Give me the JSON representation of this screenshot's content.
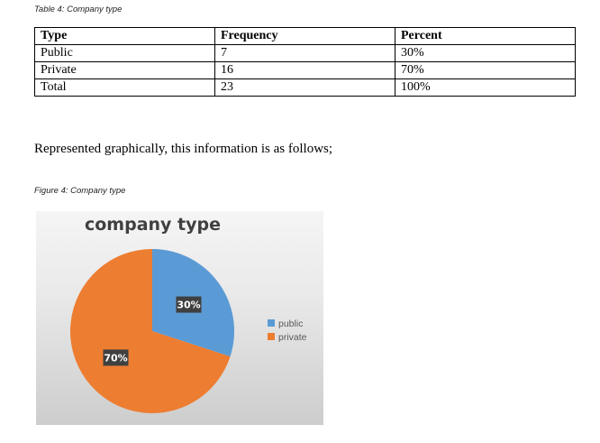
{
  "table": {
    "caption": "Table 4: Company type",
    "headers": [
      "Type",
      "Frequency",
      "Percent"
    ],
    "rows": [
      [
        "Public",
        "7",
        "30%"
      ],
      [
        "Private",
        "16",
        "70%"
      ],
      [
        "Total",
        "23",
        "100%"
      ]
    ]
  },
  "body_text": "Represented graphically, this information is as follows;",
  "figure": {
    "caption": "Figure 4: Company type"
  },
  "chart_data": {
    "type": "pie",
    "title": "company type",
    "legend_position": "right",
    "series": [
      {
        "name": "public",
        "value": 30,
        "label": "30%",
        "color": "#5b9bd5"
      },
      {
        "name": "private",
        "value": 70,
        "label": "70%",
        "color": "#ed7d31"
      }
    ]
  }
}
